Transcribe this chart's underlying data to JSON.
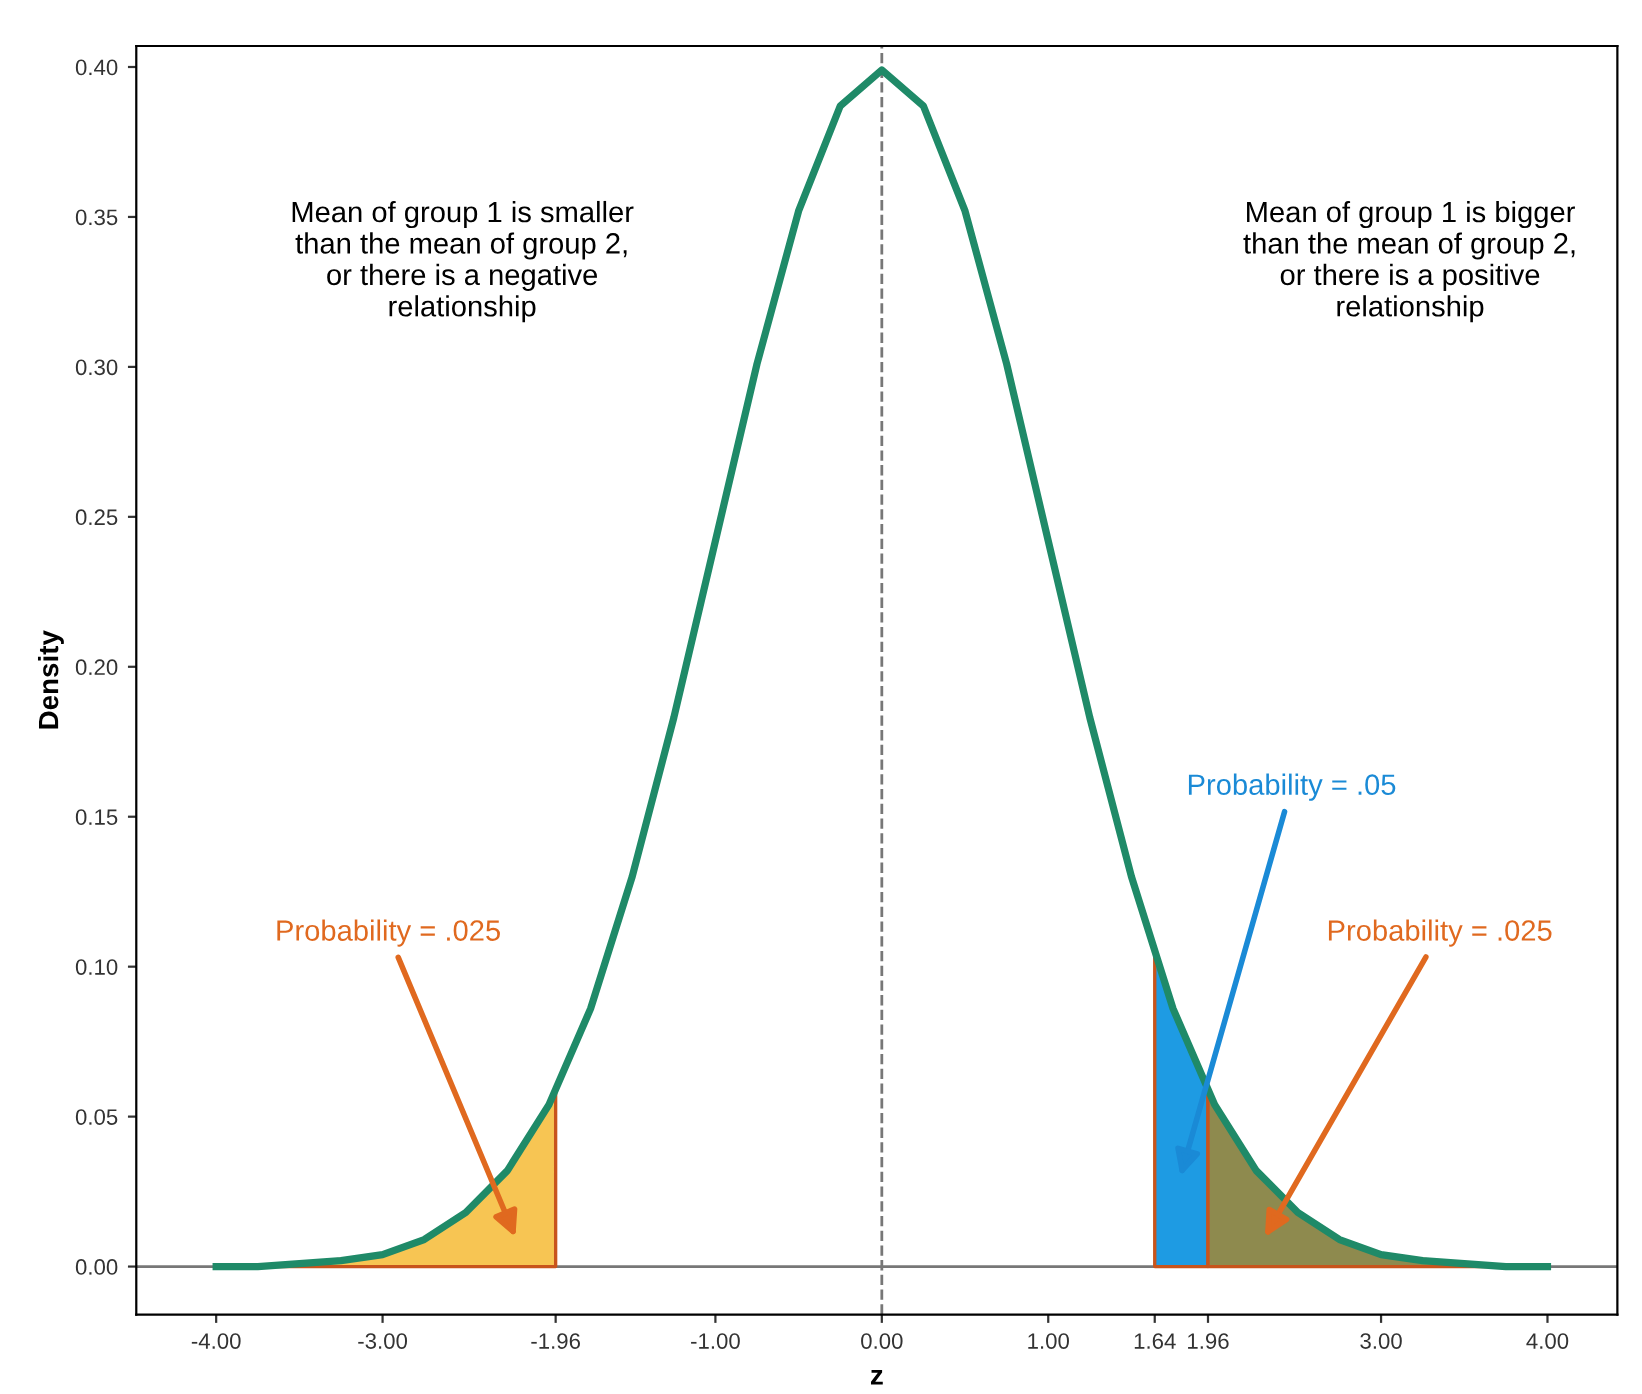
{
  "chart_data": {
    "type": "line",
    "xlabel": "z",
    "ylabel": "Density",
    "xlim": [
      -4.48,
      4.42
    ],
    "ylim": [
      -0.016,
      0.407
    ],
    "xticks": [
      {
        "value": -4,
        "label": "-4.00"
      },
      {
        "value": -3,
        "label": "-3.00"
      },
      {
        "value": -1.96,
        "label": "-1.96"
      },
      {
        "value": -1,
        "label": "-1.00"
      },
      {
        "value": 0,
        "label": "0.00"
      },
      {
        "value": 1,
        "label": "1.00"
      },
      {
        "value": 1.64,
        "label": "1.64"
      },
      {
        "value": 1.96,
        "label": "1.96"
      },
      {
        "value": 3,
        "label": "3.00"
      },
      {
        "value": 4,
        "label": "4.00"
      }
    ],
    "yticks": [
      {
        "value": 0,
        "label": "0.00"
      },
      {
        "value": 0.05,
        "label": "0.05"
      },
      {
        "value": 0.1,
        "label": "0.10"
      },
      {
        "value": 0.15,
        "label": "0.15"
      },
      {
        "value": 0.2,
        "label": "0.20"
      },
      {
        "value": 0.25,
        "label": "0.25"
      },
      {
        "value": 0.3,
        "label": "0.30"
      },
      {
        "value": 0.35,
        "label": "0.35"
      },
      {
        "value": 0.4,
        "label": "0.40"
      }
    ],
    "grid": false,
    "legend": false,
    "marker": "none",
    "series": [
      {
        "type": "area",
        "color": "#f7c553",
        "x": [
          -4,
          -3.5,
          -3,
          -2.75,
          -2.5,
          -2.25,
          -2,
          -1.96
        ],
        "values": [
          0.0,
          0.001,
          0.004,
          0.009,
          0.018,
          0.032,
          0.054,
          0.058
        ]
      },
      {
        "type": "area",
        "color": "#1e9be3",
        "x": [
          1.64,
          1.75,
          1.96
        ],
        "values": [
          0.104,
          0.086,
          0.058
        ]
      },
      {
        "type": "area",
        "color": "#8e8a4e",
        "x": [
          1.96,
          2,
          2.25,
          2.5,
          2.75,
          3,
          3.5,
          4
        ],
        "values": [
          0.058,
          0.054,
          0.032,
          0.018,
          0.009,
          0.004,
          0.001,
          0.0
        ]
      },
      {
        "color": "#1f8a68",
        "line_style": "solid",
        "x": [
          -4,
          -3.75,
          -3.5,
          -3.25,
          -3,
          -2.75,
          -2.5,
          -2.25,
          -2,
          -1.75,
          -1.5,
          -1.25,
          -1,
          -0.75,
          -0.5,
          -0.25,
          0,
          0.25,
          0.5,
          0.75,
          1,
          1.25,
          1.5,
          1.75,
          2,
          2.25,
          2.5,
          2.75,
          3,
          3.25,
          3.5,
          3.75,
          4
        ],
        "values": [
          0.0,
          0.0,
          0.001,
          0.002,
          0.004,
          0.009,
          0.018,
          0.032,
          0.054,
          0.086,
          0.13,
          0.183,
          0.242,
          0.301,
          0.352,
          0.387,
          0.399,
          0.387,
          0.352,
          0.301,
          0.242,
          0.183,
          0.13,
          0.086,
          0.054,
          0.032,
          0.018,
          0.009,
          0.004,
          0.002,
          0.001,
          0.0,
          0.0
        ]
      }
    ],
    "ref_lines": [
      {
        "axis": "x",
        "value": 0,
        "color": "#777777",
        "line_style": "dashed"
      },
      {
        "axis": "y",
        "value": 0,
        "color": "#777777",
        "line_style": "solid"
      }
    ],
    "annotations": [
      "Mean of group 1 is smaller\nthan the mean of group 2,\nor there is a negative\nrelationship",
      "Mean of group 1 is bigger\nthan the mean of group 2,\nor there is a positive\nrelationship",
      "Probability = .025",
      "Probability = .05",
      "Probability = .025"
    ]
  }
}
